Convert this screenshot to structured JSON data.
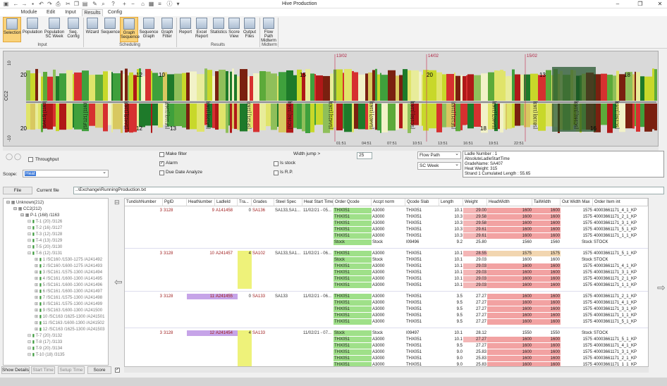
{
  "window": {
    "title": "Hive Production",
    "controls": [
      "–",
      "❐",
      "✕"
    ]
  },
  "tabs": [
    "Module",
    "Edit",
    "Input",
    "Results",
    "Config"
  ],
  "ribbon": {
    "buttons": [
      "Selection",
      "Population",
      "Population SC Week",
      "Seq. Config",
      "Wizard",
      "Sequence",
      "Graph Sequence",
      "Sequence Graph",
      "Graph Filter",
      "Report",
      "Excel Report",
      "Statistics",
      "Score View",
      "Output Files",
      "Flow Path Midterm"
    ],
    "groups": [
      "Input",
      "Scheduling",
      "Results",
      "Midterm"
    ]
  },
  "chart": {
    "ylabel": "CC2",
    "y_ticks": [
      "10",
      "-10"
    ],
    "dates": [
      "13/02",
      "14/02",
      "15/02"
    ],
    "top_numbers": [
      "20",
      "12",
      "10",
      "15",
      "20",
      "13",
      "18"
    ],
    "bottom_numbers": [
      "20",
      "12",
      "13",
      "18",
      "16"
    ],
    "bar_labels": [
      "[SA415] [1163]",
      "[SF121] [1163]",
      "[SA415] [1163]",
      "[SF110] [1163]",
      "[SA120] [1163]",
      "[SF121] [1163]",
      "[SC161] [1163]",
      "[SA421] [1163]",
      "[SA407] [1163]",
      "[SC150] [1163]",
      "[SF121] [1163]",
      "[SA407] [1163]",
      "[SB130] [1163]",
      "[SC161] [1163]",
      "[SC150] [1163]"
    ],
    "time_ticks": [
      "01:51",
      "04:51",
      "07:51",
      "10:51",
      "13:51",
      "16:51",
      "19:51",
      "22:51"
    ]
  },
  "controls": {
    "throughput": "Throughput",
    "make_filter": "Make filter",
    "alarm": "Alarm",
    "due_date": "Due Date Analyze",
    "is_stock": "Is stock",
    "is_rp": "Is R.P.",
    "width_jump_label": "Width jump >",
    "width_jump_value": "25",
    "flow_path": "Flow Path",
    "sc_week": "SC Week",
    "scope_label": "Scope:",
    "scope_value": "Heat",
    "info": [
      "Ladle Number : 1",
      "AbsoluteLadleStartTime",
      "GradeName: SA407",
      "Heat Weight: 315",
      "Strand 1 Cumulated Length : 55.65"
    ]
  },
  "filebar": {
    "button": "File",
    "label": "Current file",
    "path": "..\\Exchange\\RunningProduction.txt"
  },
  "tree": [
    {
      "t": "Unknown(212)",
      "l": 0
    },
    {
      "t": "CC2(212)",
      "l": 1
    },
    {
      "t": "P-1 (168) /1163",
      "l": 2
    },
    {
      "t": "T-1 (20) /3126",
      "l": 3
    },
    {
      "t": "T-2 (16) /3127",
      "l": 3
    },
    {
      "t": "T-3 (12) /3128",
      "l": 3
    },
    {
      "t": "T-4 (13) /3129",
      "l": 3
    },
    {
      "t": "T-5 (20) /3130",
      "l": 3
    },
    {
      "t": "T-6 (12) /3131",
      "l": 3
    },
    {
      "t": "1 /SC160 /1530-1275 /A241492",
      "l": 4
    },
    {
      "t": "2 /SC160 /1600-1275 /A241493",
      "l": 4
    },
    {
      "t": "3 /SC161 /1575-1300 /A241494",
      "l": 4
    },
    {
      "t": "4 /SC161 /1600-1300 /A141495",
      "l": 4
    },
    {
      "t": "5 /SC161 /1600-1300 /A241496",
      "l": 4
    },
    {
      "t": "6 /SC161 /1600-1300 /A241497",
      "l": 4
    },
    {
      "t": "7 /SC161 /1575-1300 /A241498",
      "l": 4
    },
    {
      "t": "8 /SC161 /1575-1300 /A241499",
      "l": 4
    },
    {
      "t": "9 /SC163 /1600-1300 /A241500",
      "l": 4
    },
    {
      "t": "10 /SC163 /1625-1300 /A241501",
      "l": 4
    },
    {
      "t": "11 /SC163 /1600-1300 /A241502",
      "l": 4
    },
    {
      "t": "12 /SC163 /1625-1300 /A241503",
      "l": 4
    },
    {
      "t": "T-7 (20) /3132",
      "l": 3
    },
    {
      "t": "T-8 (17) /3133",
      "l": 3
    },
    {
      "t": "T-9 (20) /3134",
      "l": 3
    },
    {
      "t": "T-10 (18) /3135",
      "l": 3
    }
  ],
  "tree_buttons": [
    "Show Details",
    "Start Time",
    "Setup Time",
    "Score"
  ],
  "grid": {
    "headers": [
      "TundishNumber",
      "PgID",
      "HeatNumber",
      "LadleId",
      "Tra...",
      "Grades",
      "Steel Spec",
      "Heat Start Time",
      "Order Qcode",
      "Accpt norm",
      "Qcode Slab",
      "Length",
      "Weight",
      "HeadWidth",
      "TailWidth",
      "Out Width Max",
      "Order Item int"
    ],
    "heats": [
      {
        "tundish": "3",
        "pg": "3128",
        "heat": "9",
        "ladle": "A141458",
        "tra": "0",
        "grade": "SA136",
        "spec": "SA133,SA1...",
        "start": "11/02/21 - 05...",
        "rows": [
          [
            "THX051",
            "A3000",
            "THX051",
            "10.1",
            "29.00",
            "1600",
            "1600",
            "1575",
            "40003661171_4_1_KP"
          ],
          [
            "THX051",
            "A3000",
            "THX051",
            "10.3",
            "29.58",
            "1600",
            "1600",
            "1575",
            "40003661171_2_1_KP"
          ],
          [
            "THX051",
            "A3000",
            "THX051",
            "10.3",
            "29.58",
            "1600",
            "1600",
            "1575",
            "40003661171_3_1_KP"
          ],
          [
            "THX051",
            "A3000",
            "THX051",
            "10.3",
            "29.61",
            "1600",
            "1600",
            "1575",
            "40003661171_5_1_KP"
          ],
          [
            "THX051",
            "A3000",
            "THX051",
            "10.3",
            "29.61",
            "1600",
            "1600",
            "1575",
            "40003661171_1_1_KP"
          ],
          [
            "Stock",
            "Stock",
            "I09496",
            "9.2",
            "25.80",
            "1560",
            "1560",
            "Stock",
            "STOCK"
          ]
        ]
      },
      {
        "tundish": "3",
        "pg": "3128",
        "heat": "10",
        "ladle": "A241457",
        "tra": "4",
        "grade": "SA102",
        "spec": "SA133,SA1...",
        "start": "11/02/21 - 06...",
        "rows": [
          [
            "THX051",
            "A3000",
            "THX051",
            "10.1",
            "28.55",
            "1575",
            "1575",
            "1575",
            "40003661171_5_1_KP"
          ],
          [
            "Stock",
            "Stock",
            "THX051",
            "10.1",
            "29.03",
            "1600",
            "1600",
            "Stock",
            "STOCK"
          ],
          [
            "THX051",
            "A3000",
            "THX051",
            "10.1",
            "29.03",
            "1600",
            "1600",
            "1575",
            "40003661171_4_1_KP"
          ],
          [
            "THX051",
            "A3000",
            "THX051",
            "10.1",
            "29.03",
            "1600",
            "1600",
            "1575",
            "40003661171_3_1_KP"
          ],
          [
            "THX051",
            "A3000",
            "THX051",
            "10.1",
            "29.03",
            "1600",
            "1600",
            "1575",
            "40003661171_2_1_KP"
          ],
          [
            "THX051",
            "A3000",
            "THX051",
            "10.1",
            "29.03",
            "1600",
            "1600",
            "1575",
            "40003661171_1_1_KP"
          ]
        ]
      },
      {
        "tundish": "3",
        "pg": "3128",
        "heat": "11",
        "ladle": "A241455",
        "tra": "0",
        "grade": "SA133",
        "spec": "SA133",
        "start": "11/02/21 - 06...",
        "rows": [
          [
            "THX051",
            "A3000",
            "THX051",
            "3.5",
            "27.27",
            "1600",
            "1600",
            "1575",
            "40003661171_2_1_KP"
          ],
          [
            "THX051",
            "A3000",
            "THX051",
            "9.5",
            "27.27",
            "1600",
            "1600",
            "1575",
            "40003661171_4_1_KP"
          ],
          [
            "THX051",
            "A3000",
            "THX051",
            "9.5",
            "27.27",
            "1600",
            "1600",
            "1575",
            "40003661171_3_1_KP"
          ],
          [
            "THX051",
            "A3000",
            "THX051",
            "9.5",
            "27.27",
            "1600",
            "1600",
            "1575",
            "40003661171_1_1_KP"
          ],
          [
            "THX051",
            "A3000",
            "THX051",
            "9.5",
            "27.27",
            "1600",
            "1600",
            "1575",
            "40003661171_5_1_KP"
          ]
        ]
      },
      {
        "tundish": "3",
        "pg": "3128",
        "heat": "12",
        "ladle": "A241454",
        "tra": "4",
        "grade": "SA133",
        "spec": "",
        "start": "11/02/21 - 07...",
        "rows": [
          [
            "Stock",
            "Stock",
            "I09497",
            "10.1",
            "28.12",
            "1550",
            "1550",
            "Stock",
            "STOCK"
          ],
          [
            "THX051",
            "A3000",
            "THX051",
            "10.1",
            "27.27",
            "1600",
            "1600",
            "1575",
            "40003661171_5_1_KP"
          ],
          [
            "THX051",
            "A3000",
            "THX051",
            "9.5",
            "27.27",
            "1600",
            "1600",
            "1575",
            "40003661171_4_1_KP"
          ],
          [
            "THX051",
            "A3000",
            "THX051",
            "9.0",
            "25.83",
            "1600",
            "1600",
            "1575",
            "40003661171_3_1_KP"
          ],
          [
            "THX051",
            "A3000",
            "THX051",
            "9.0",
            "25.83",
            "1600",
            "1600",
            "1575",
            "40003661171_2_1_KP"
          ],
          [
            "THX051",
            "A3000",
            "THX051",
            "9.0",
            "25.83",
            "1600",
            "1600",
            "1575",
            "40003661171_1_1_KP"
          ]
        ]
      }
    ]
  }
}
